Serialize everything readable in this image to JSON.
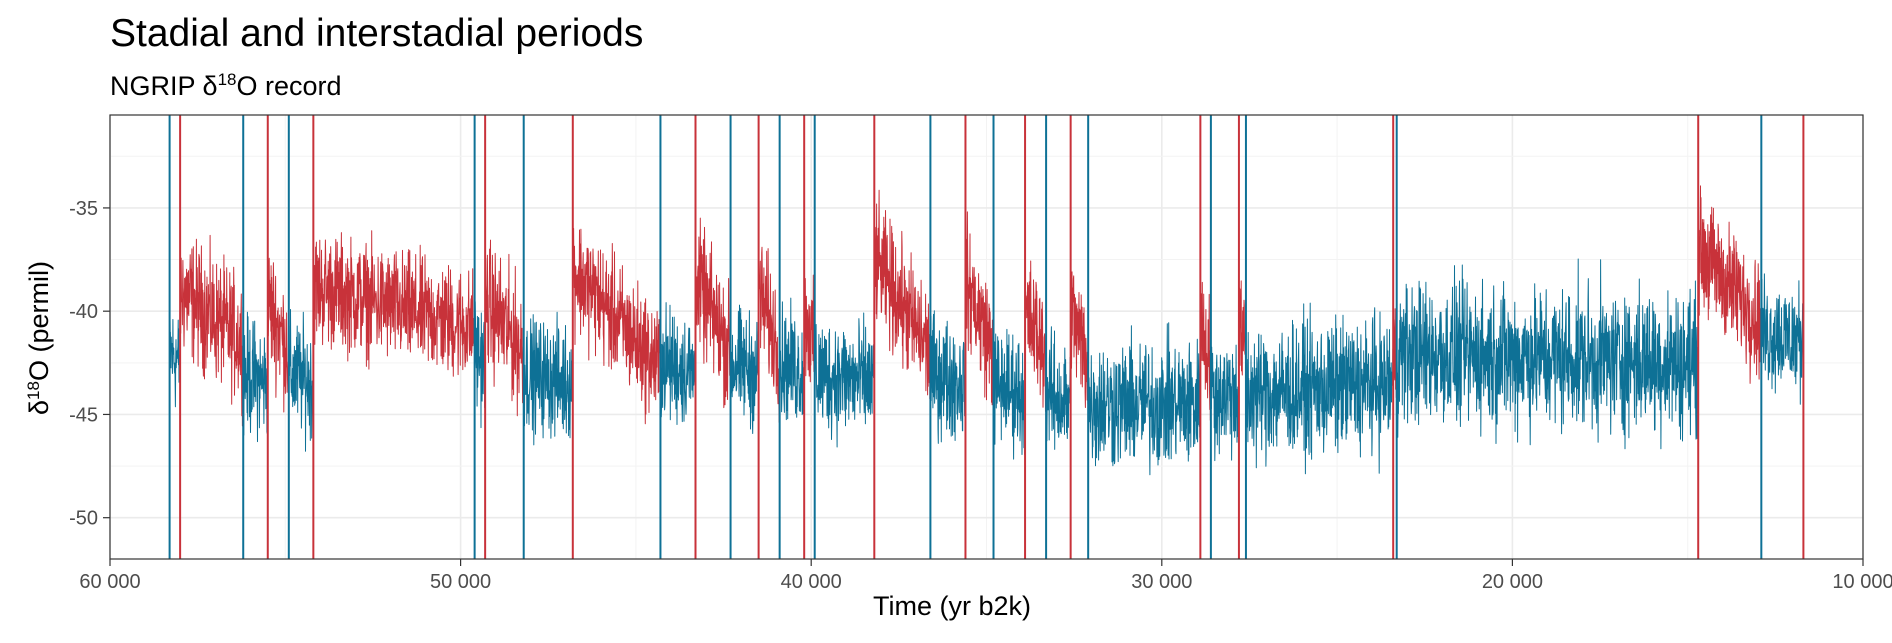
{
  "title": "Stadial and interstadial periods",
  "subtitle": {
    "prefix": "NGRIP δ",
    "sup": "18",
    "suffix": "O record"
  },
  "chart_data": {
    "type": "line",
    "xlabel": "Time (yr b2k)",
    "ylabel": {
      "prefix": "δ",
      "sup": "18",
      "suffix": "O (permil)"
    },
    "xlim": [
      60000,
      10000
    ],
    "ylim": [
      -52,
      -30.5
    ],
    "x_reversed": true,
    "grid": true,
    "xticks": [
      60000,
      50000,
      40000,
      30000,
      20000,
      10000
    ],
    "xtick_labels": [
      "60 000",
      "50 000",
      "40 000",
      "30 000",
      "20 000",
      "10 000"
    ],
    "yticks": [
      -35,
      -40,
      -45,
      -50
    ],
    "ytick_labels": [
      "-35",
      "-40",
      "-45",
      "-50"
    ],
    "colors": {
      "interstadial": "#c8323a",
      "stadial": "#0e7196"
    },
    "interstadials": [
      [
        58000,
        56200
      ],
      [
        55500,
        54900
      ],
      [
        54200,
        49600
      ],
      [
        49300,
        48200
      ],
      [
        46800,
        44300
      ],
      [
        43300,
        42300
      ],
      [
        41500,
        40900
      ],
      [
        40200,
        39900
      ],
      [
        38200,
        36600
      ],
      [
        35600,
        34800
      ],
      [
        33900,
        33300
      ],
      [
        32600,
        32100
      ],
      [
        28900,
        28600
      ],
      [
        27800,
        27600
      ],
      [
        23400,
        23300
      ],
      [
        14700,
        12900
      ]
    ],
    "lines": [
      {
        "x": 58300,
        "kind": "stadial"
      },
      {
        "x": 58000,
        "kind": "interstadial"
      },
      {
        "x": 56200,
        "kind": "stadial"
      },
      {
        "x": 55500,
        "kind": "interstadial"
      },
      {
        "x": 54900,
        "kind": "stadial"
      },
      {
        "x": 54200,
        "kind": "interstadial"
      },
      {
        "x": 49600,
        "kind": "stadial"
      },
      {
        "x": 49300,
        "kind": "interstadial"
      },
      {
        "x": 48200,
        "kind": "stadial"
      },
      {
        "x": 46800,
        "kind": "interstadial"
      },
      {
        "x": 44300,
        "kind": "stadial"
      },
      {
        "x": 43300,
        "kind": "interstadial"
      },
      {
        "x": 42300,
        "kind": "stadial"
      },
      {
        "x": 41500,
        "kind": "interstadial"
      },
      {
        "x": 40900,
        "kind": "stadial"
      },
      {
        "x": 40200,
        "kind": "interstadial"
      },
      {
        "x": 39900,
        "kind": "stadial"
      },
      {
        "x": 38200,
        "kind": "interstadial"
      },
      {
        "x": 36600,
        "kind": "stadial"
      },
      {
        "x": 35600,
        "kind": "interstadial"
      },
      {
        "x": 34800,
        "kind": "stadial"
      },
      {
        "x": 33900,
        "kind": "interstadial"
      },
      {
        "x": 33300,
        "kind": "stadial"
      },
      {
        "x": 32600,
        "kind": "interstadial"
      },
      {
        "x": 32100,
        "kind": "stadial"
      },
      {
        "x": 28900,
        "kind": "interstadial"
      },
      {
        "x": 28600,
        "kind": "stadial"
      },
      {
        "x": 27800,
        "kind": "interstadial"
      },
      {
        "x": 27600,
        "kind": "stadial"
      },
      {
        "x": 23400,
        "kind": "interstadial"
      },
      {
        "x": 23300,
        "kind": "stadial"
      },
      {
        "x": 14700,
        "kind": "interstadial"
      },
      {
        "x": 12900,
        "kind": "stadial"
      },
      {
        "x": 11700,
        "kind": "interstadial"
      }
    ],
    "segments": [
      {
        "from": 58300,
        "to": 58000,
        "kind": "stadial",
        "start": -42.0,
        "end": -42.5,
        "noise": 2.2
      },
      {
        "from": 58000,
        "to": 56200,
        "kind": "interstadial",
        "start": -39.0,
        "end": -41.5,
        "noise": 2.5
      },
      {
        "from": 56200,
        "to": 55500,
        "kind": "stadial",
        "start": -43.0,
        "end": -43.5,
        "noise": 2.3
      },
      {
        "from": 55500,
        "to": 54900,
        "kind": "interstadial",
        "start": -39.5,
        "end": -42.0,
        "noise": 2.5
      },
      {
        "from": 54900,
        "to": 54200,
        "kind": "stadial",
        "start": -43.0,
        "end": -43.5,
        "noise": 2.3
      },
      {
        "from": 54200,
        "to": 49600,
        "kind": "interstadial",
        "start": -38.8,
        "end": -40.8,
        "noise": 2.3
      },
      {
        "from": 49600,
        "to": 49300,
        "kind": "stadial",
        "start": -42.0,
        "end": -42.5,
        "noise": 2.3
      },
      {
        "from": 49300,
        "to": 48200,
        "kind": "interstadial",
        "start": -39.5,
        "end": -42.0,
        "noise": 2.6
      },
      {
        "from": 48200,
        "to": 46800,
        "kind": "stadial",
        "start": -43.0,
        "end": -43.5,
        "noise": 2.3
      },
      {
        "from": 46800,
        "to": 44300,
        "kind": "interstadial",
        "start": -38.0,
        "end": -42.8,
        "noise": 2.4
      },
      {
        "from": 44300,
        "to": 43300,
        "kind": "stadial",
        "start": -42.5,
        "end": -43.0,
        "noise": 2.3
      },
      {
        "from": 43300,
        "to": 42300,
        "kind": "interstadial",
        "start": -38.5,
        "end": -42.0,
        "noise": 2.5
      },
      {
        "from": 42300,
        "to": 41500,
        "kind": "stadial",
        "start": -42.5,
        "end": -43.0,
        "noise": 2.3
      },
      {
        "from": 41500,
        "to": 40900,
        "kind": "interstadial",
        "start": -39.0,
        "end": -42.0,
        "noise": 2.5
      },
      {
        "from": 40900,
        "to": 40200,
        "kind": "stadial",
        "start": -42.5,
        "end": -43.0,
        "noise": 2.3
      },
      {
        "from": 40200,
        "to": 39900,
        "kind": "interstadial",
        "start": -40.0,
        "end": -42.0,
        "noise": 2.4
      },
      {
        "from": 39900,
        "to": 38200,
        "kind": "stadial",
        "start": -43.0,
        "end": -43.5,
        "noise": 2.4
      },
      {
        "from": 38200,
        "to": 36600,
        "kind": "interstadial",
        "start": -37.5,
        "end": -42.0,
        "noise": 2.5
      },
      {
        "from": 36600,
        "to": 35600,
        "kind": "stadial",
        "start": -43.0,
        "end": -43.5,
        "noise": 2.4
      },
      {
        "from": 35600,
        "to": 34800,
        "kind": "interstadial",
        "start": -38.5,
        "end": -42.0,
        "noise": 2.5
      },
      {
        "from": 34800,
        "to": 33900,
        "kind": "stadial",
        "start": -43.5,
        "end": -44.0,
        "noise": 2.4
      },
      {
        "from": 33900,
        "to": 33300,
        "kind": "interstadial",
        "start": -40.0,
        "end": -42.0,
        "noise": 2.5
      },
      {
        "from": 33300,
        "to": 32600,
        "kind": "stadial",
        "start": -44.0,
        "end": -44.5,
        "noise": 2.4
      },
      {
        "from": 32600,
        "to": 32100,
        "kind": "interstadial",
        "start": -40.0,
        "end": -42.5,
        "noise": 2.5
      },
      {
        "from": 32100,
        "to": 28900,
        "kind": "stadial",
        "start": -44.5,
        "end": -44.5,
        "noise": 2.6
      },
      {
        "from": 28900,
        "to": 28600,
        "kind": "interstadial",
        "start": -40.5,
        "end": -42.5,
        "noise": 2.4
      },
      {
        "from": 28600,
        "to": 27800,
        "kind": "stadial",
        "start": -44.0,
        "end": -44.0,
        "noise": 2.5
      },
      {
        "from": 27800,
        "to": 27600,
        "kind": "interstadial",
        "start": -41.0,
        "end": -42.0,
        "noise": 2.4
      },
      {
        "from": 27600,
        "to": 23400,
        "kind": "stadial",
        "start": -44.0,
        "end": -43.5,
        "noise": 2.7
      },
      {
        "from": 23400,
        "to": 23300,
        "kind": "interstadial",
        "start": -42.0,
        "end": -42.5,
        "noise": 2.5
      },
      {
        "from": 23300,
        "to": 14700,
        "kind": "stadial",
        "start": -42.0,
        "end": -42.5,
        "noise": 2.9
      },
      {
        "from": 14700,
        "to": 12900,
        "kind": "interstadial",
        "start": -37.0,
        "end": -40.5,
        "noise": 2.4
      },
      {
        "from": 12900,
        "to": 11700,
        "kind": "stadial",
        "start": -41.0,
        "end": -41.5,
        "noise": 2.3
      }
    ]
  }
}
